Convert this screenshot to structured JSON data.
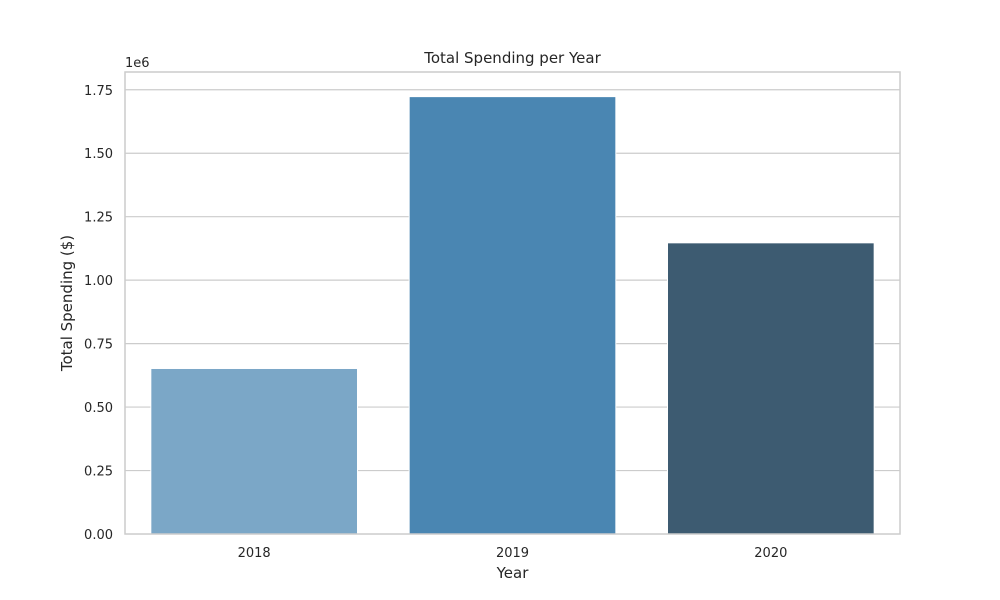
{
  "chart_data": {
    "type": "bar",
    "title": "Total Spending per Year",
    "xlabel": "Year",
    "ylabel": "Total Spending ($)",
    "y_offset_label": "1e6",
    "categories": [
      "2018",
      "2019",
      "2020"
    ],
    "values": [
      652000,
      1723000,
      1147000
    ],
    "colors": [
      "#7ba7c7",
      "#4a86b2",
      "#3d5b71"
    ],
    "ylim": [
      0,
      1820000
    ],
    "yticks": [
      0,
      250000,
      500000,
      750000,
      1000000,
      1250000,
      1500000,
      1750000
    ],
    "ytick_labels": [
      "0.00",
      "0.25",
      "0.50",
      "0.75",
      "1.00",
      "1.25",
      "1.50",
      "1.75"
    ],
    "grid": true,
    "grid_color": "#cccccc"
  }
}
